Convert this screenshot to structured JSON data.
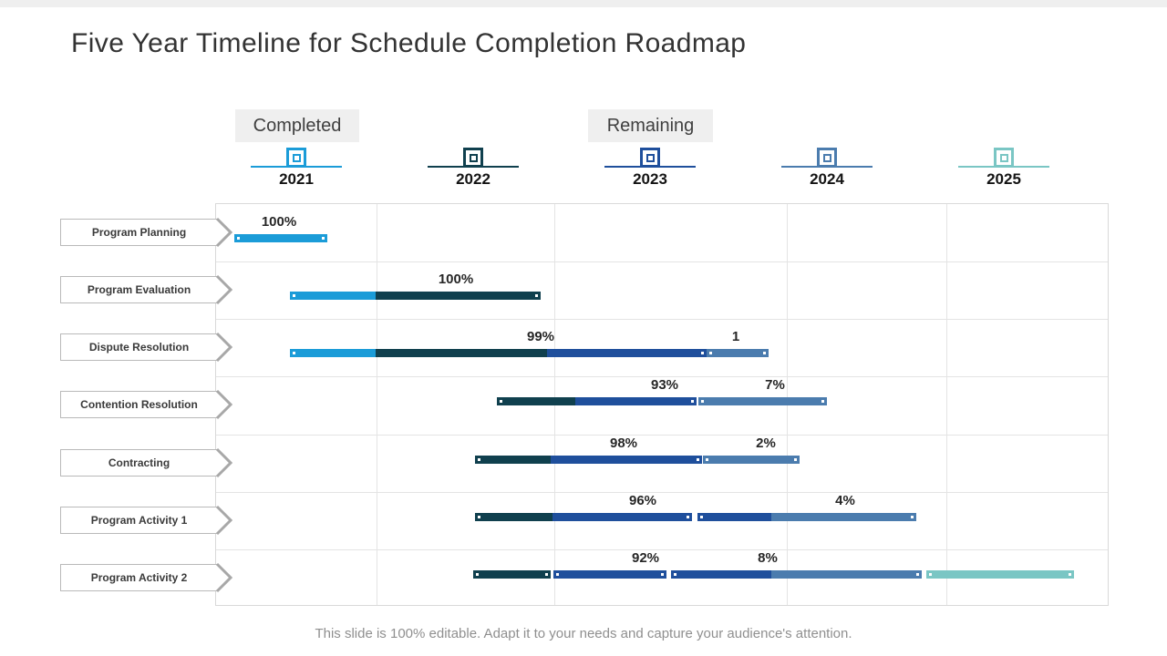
{
  "slide": {
    "title": "Five Year Timeline for Schedule Completion Roadmap",
    "footer": "This slide is 100% editable. Adapt it to your needs and capture your audience's attention."
  },
  "legend": {
    "completed": "Completed",
    "remaining": "Remaining"
  },
  "colors": {
    "y2021": "#1B9CD8",
    "y2022": "#10404E",
    "y2023": "#1F4F9C",
    "y2024": "#4B7CAE",
    "y2025": "#7AC6C4",
    "grid": "#E4E4E4",
    "chip_bg": "#EFEFEF",
    "arrow": "#A8A8A8"
  },
  "years": [
    {
      "label": "2021",
      "color": "y2021"
    },
    {
      "label": "2022",
      "color": "y2022"
    },
    {
      "label": "2023",
      "color": "y2023"
    },
    {
      "label": "2024",
      "color": "y2024"
    },
    {
      "label": "2025",
      "color": "y2025"
    }
  ],
  "rows": [
    {
      "label": "Program Planning",
      "value_labels": [
        {
          "text": "100%",
          "x": 0.0714
        }
      ],
      "pieces": [
        {
          "segs": [
            {
              "color": "y2021",
              "x0": 0.0265,
              "x1": 0.1214
            }
          ]
        }
      ]
    },
    {
      "label": "Program Evaluation",
      "value_labels": [
        {
          "text": "100%",
          "x": 0.2694
        }
      ],
      "pieces": [
        {
          "segs": [
            {
              "color": "y2021",
              "x0": 0.0878,
              "x1": 0.1796
            },
            {
              "color": "y2022",
              "x0": 0.1796,
              "x1": 0.3592
            }
          ]
        }
      ]
    },
    {
      "label": "Dispute Resolution",
      "value_labels": [
        {
          "text": "99%",
          "x": 0.3643
        },
        {
          "text": "1",
          "x": 0.5827
        }
      ],
      "pieces": [
        {
          "segs": [
            {
              "color": "y2021",
              "x0": 0.0878,
              "x1": 0.1796
            },
            {
              "color": "y2022",
              "x0": 0.1796,
              "x1": 0.3714
            },
            {
              "color": "y2023",
              "x0": 0.3714,
              "x1": 0.5449
            }
          ]
        },
        {
          "segs": [
            {
              "color": "y2024",
              "x0": 0.5541,
              "x1": 0.6143
            }
          ]
        }
      ]
    },
    {
      "label": "Contention  Resolution",
      "value_labels": [
        {
          "text": "93%",
          "x": 0.5031
        },
        {
          "text": "7%",
          "x": 0.6265
        }
      ],
      "pieces": [
        {
          "segs": [
            {
              "color": "y2022",
              "x0": 0.3194,
              "x1": 0.4031
            },
            {
              "color": "y2023",
              "x0": 0.4031,
              "x1": 0.5337
            }
          ]
        },
        {
          "segs": [
            {
              "color": "y2024",
              "x0": 0.5459,
              "x1": 0.6806
            }
          ]
        }
      ]
    },
    {
      "label": "Contracting",
      "value_labels": [
        {
          "text": "98%",
          "x": 0.4571
        },
        {
          "text": "2%",
          "x": 0.6163
        }
      ],
      "pieces": [
        {
          "segs": [
            {
              "color": "y2022",
              "x0": 0.2949,
              "x1": 0.3755
            },
            {
              "color": "y2023",
              "x0": 0.3755,
              "x1": 0.5408
            }
          ]
        },
        {
          "segs": [
            {
              "color": "y2024",
              "x0": 0.551,
              "x1": 0.649
            }
          ]
        }
      ]
    },
    {
      "label": "Program Activity  1",
      "value_labels": [
        {
          "text": "96%",
          "x": 0.4786
        },
        {
          "text": "4%",
          "x": 0.7051
        }
      ],
      "pieces": [
        {
          "segs": [
            {
              "color": "y2022",
              "x0": 0.2949,
              "x1": 0.3776
            },
            {
              "color": "y2023",
              "x0": 0.3776,
              "x1": 0.5286
            }
          ]
        },
        {
          "segs": [
            {
              "color": "y2023",
              "x0": 0.5439,
              "x1": 0.6224
            },
            {
              "color": "y2024",
              "x0": 0.6224,
              "x1": 0.7806
            }
          ]
        }
      ]
    },
    {
      "label": "Program Activity  2",
      "value_labels": [
        {
          "text": "92%",
          "x": 0.4816
        },
        {
          "text": "8%",
          "x": 0.6184
        }
      ],
      "pieces": [
        {
          "segs": [
            {
              "color": "y2022",
              "x0": 0.2929,
              "x1": 0.3714
            }
          ]
        },
        {
          "segs": [
            {
              "color": "y2023",
              "x0": 0.3827,
              "x1": 0.5
            }
          ]
        },
        {
          "segs": [
            {
              "color": "y2023",
              "x0": 0.5143,
              "x1": 0.6224
            },
            {
              "color": "y2024",
              "x0": 0.6224,
              "x1": 0.7867
            }
          ]
        },
        {
          "segs": [
            {
              "color": "y2025",
              "x0": 0.8,
              "x1": 0.9571
            }
          ]
        }
      ]
    }
  ],
  "chart_data": {
    "type": "bar",
    "variant": "gantt_timeline",
    "title": "Five Year Timeline for Schedule Completion Roadmap",
    "x_categories": [
      "2021",
      "2022",
      "2023",
      "2024",
      "2025"
    ],
    "legend_entries": [
      "Completed",
      "Remaining"
    ],
    "grid": true,
    "tasks": [
      {
        "name": "Program Planning",
        "completed_label": "100%",
        "remaining_label": null,
        "completed_span_years": [
          2021,
          2021
        ],
        "remaining_span_years": null
      },
      {
        "name": "Program Evaluation",
        "completed_label": "100%",
        "remaining_label": null,
        "completed_span_years": [
          2021,
          2022
        ],
        "remaining_span_years": null
      },
      {
        "name": "Dispute Resolution",
        "completed_label": "99%",
        "remaining_label": "1",
        "completed_span_years": [
          2021,
          2023
        ],
        "remaining_span_years": [
          2023,
          2024
        ]
      },
      {
        "name": "Contention Resolution",
        "completed_label": "93%",
        "remaining_label": "7%",
        "completed_span_years": [
          2022,
          2023
        ],
        "remaining_span_years": [
          2023,
          2024
        ]
      },
      {
        "name": "Contracting",
        "completed_label": "98%",
        "remaining_label": "2%",
        "completed_span_years": [
          2022,
          2023
        ],
        "remaining_span_years": [
          2023,
          2024
        ]
      },
      {
        "name": "Program Activity 1",
        "completed_label": "96%",
        "remaining_label": "4%",
        "completed_span_years": [
          2022,
          2023
        ],
        "remaining_span_years": [
          2023,
          2024
        ]
      },
      {
        "name": "Program Activity 2",
        "completed_label": "92%",
        "remaining_label": "8%",
        "completed_span_years": [
          2022,
          2023
        ],
        "remaining_span_years": [
          2023,
          2025
        ]
      }
    ]
  }
}
